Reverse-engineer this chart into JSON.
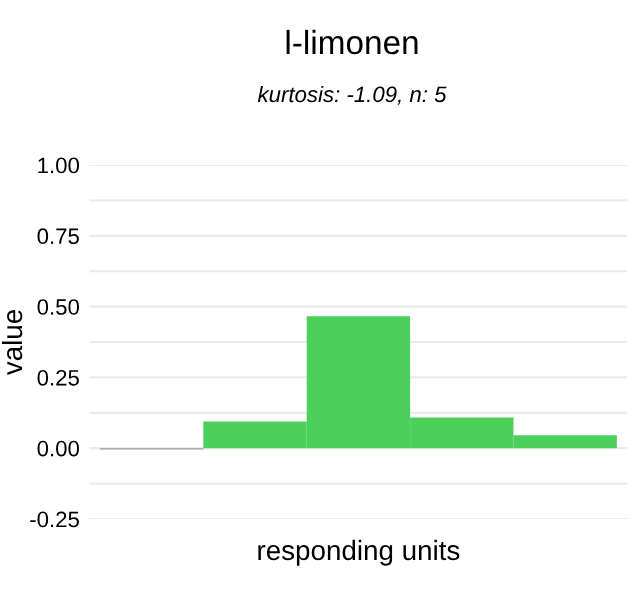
{
  "chart_data": {
    "type": "bar",
    "title": "l-limonen",
    "subtitle": "kurtosis: -1.09, n: 5",
    "xlabel": "responding units",
    "ylabel": "value",
    "categories": [
      null,
      null,
      null,
      null,
      null
    ],
    "values": [
      -0.005,
      0.094,
      0.466,
      0.108,
      0.046
    ],
    "colors": [
      "#999999",
      "#4cd05c",
      "#4cd05c",
      "#4cd05c",
      "#4cd05c"
    ],
    "ylim": [
      -0.25,
      1.0
    ],
    "yticks": [
      {
        "value": -0.25,
        "label": "-0.25"
      },
      {
        "value": -0.125,
        "label": null
      },
      {
        "value": 0,
        "label": "0.00"
      },
      {
        "value": 0.125,
        "label": null
      },
      {
        "value": 0.25,
        "label": "0.25"
      },
      {
        "value": 0.375,
        "label": null
      },
      {
        "value": 0.5,
        "label": "0.50"
      },
      {
        "value": 0.625,
        "label": null
      },
      {
        "value": 0.75,
        "label": "0.75"
      },
      {
        "value": 0.875,
        "label": null
      },
      {
        "value": 1.0,
        "label": "1.00"
      }
    ],
    "grid": "y"
  }
}
